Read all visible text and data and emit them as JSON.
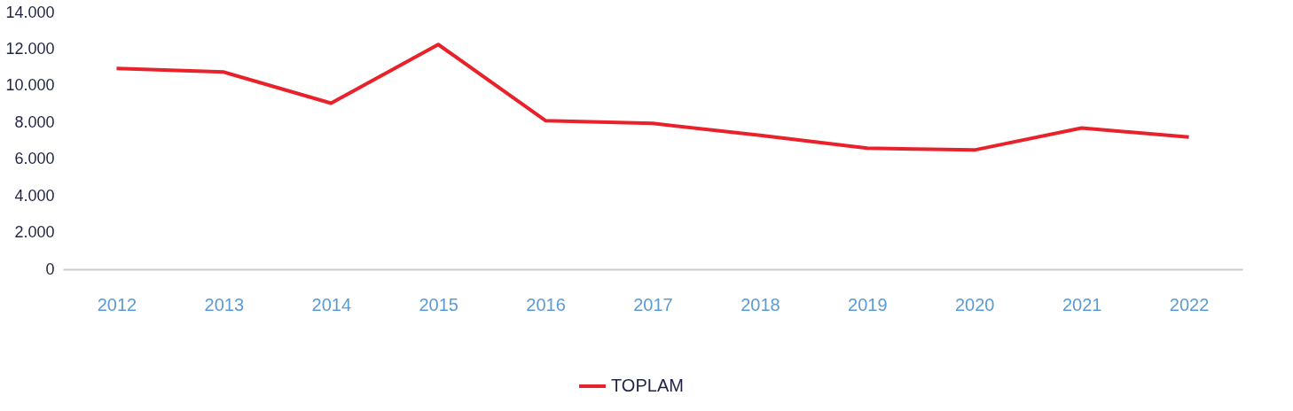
{
  "chart_data": {
    "type": "line",
    "categories": [
      "2012",
      "2013",
      "2014",
      "2015",
      "2016",
      "2017",
      "2018",
      "2019",
      "2020",
      "2021",
      "2022"
    ],
    "series": [
      {
        "name": "TOPLAM",
        "color": "#e8212a",
        "values": [
          10950,
          10750,
          9050,
          12250,
          8100,
          7950,
          7300,
          6600,
          6500,
          7700,
          7200
        ]
      }
    ],
    "ylim": [
      0,
      14000
    ],
    "yticks": [
      {
        "value": 0,
        "label": "0"
      },
      {
        "value": 2000,
        "label": "2.000"
      },
      {
        "value": 4000,
        "label": "4.000"
      },
      {
        "value": 6000,
        "label": "6.000"
      },
      {
        "value": 8000,
        "label": "8.000"
      },
      {
        "value": 10000,
        "label": "10.000"
      },
      {
        "value": 12000,
        "label": "12.000"
      },
      {
        "value": 14000,
        "label": "14.000"
      }
    ],
    "grid": false,
    "legend": "bottom",
    "marker": "none",
    "line_style": "solid"
  }
}
